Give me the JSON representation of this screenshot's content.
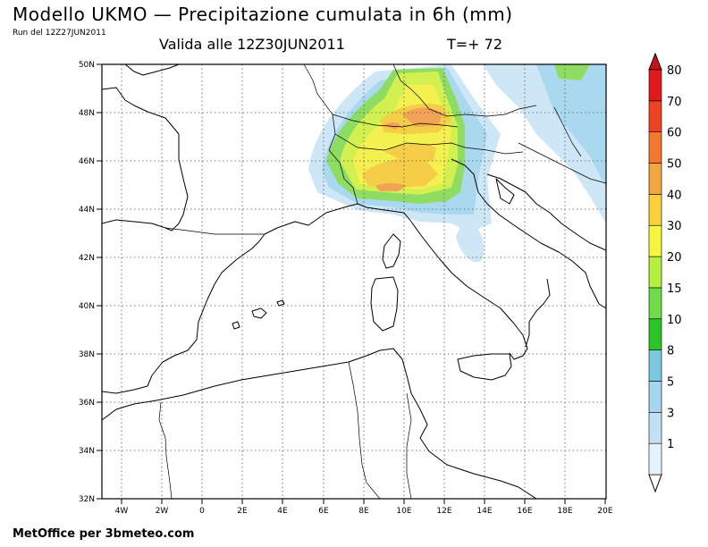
{
  "header": {
    "title": "Modello UKMO — Precipitazione cumulata in 6h (mm)",
    "run": "Run del 12Z27JUN2011",
    "valid": "Valida alle 12Z30JUN2011",
    "timestep": "T=+ 72"
  },
  "footer": {
    "credit": "MetOffice per 3bmeteo.com"
  },
  "axes": {
    "lon_labels": [
      "4W",
      "2W",
      "0",
      "2E",
      "4E",
      "6E",
      "8E",
      "10E",
      "12E",
      "14E",
      "16E",
      "18E",
      "20E"
    ],
    "lat_labels": [
      "50N",
      "48N",
      "46N",
      "44N",
      "42N",
      "40N",
      "38N",
      "36N",
      "34N",
      "32N"
    ]
  },
  "colorbar": {
    "levels": [
      "1",
      "3",
      "5",
      "8",
      "10",
      "15",
      "20",
      "30",
      "40",
      "50",
      "60",
      "70",
      "80"
    ],
    "colors": [
      "#e6f2fb",
      "#c4e1f4",
      "#a4d6ee",
      "#7cc8e2",
      "#2ac628",
      "#6fdc4a",
      "#b7ee42",
      "#f6f640",
      "#f8d03c",
      "#f4a640",
      "#f3782e",
      "#ec4422",
      "#e31a1c"
    ]
  },
  "precip_colors": {
    "light_blue": "#cde7f6",
    "mid_blue": "#a9d8ef",
    "green": "#8fdc62",
    "yellow_green": "#d2f04f",
    "yellow": "#f4f050",
    "gold": "#f6cd47",
    "orange": "#f1a257"
  }
}
